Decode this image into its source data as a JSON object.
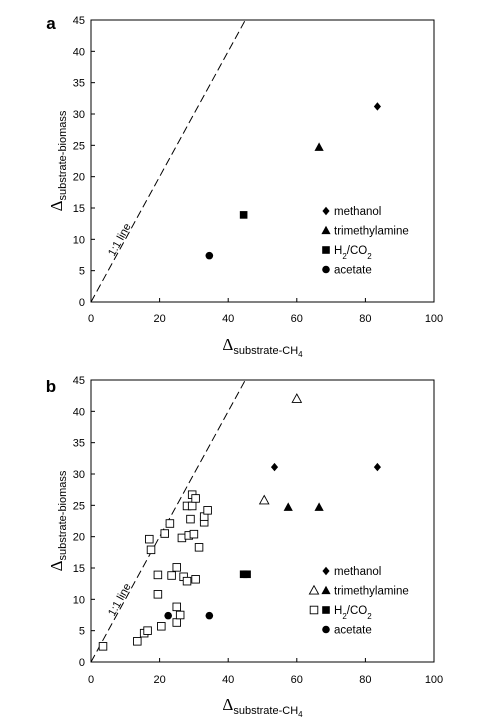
{
  "chart_data": [
    {
      "panel_label": "a",
      "type": "scatter",
      "xlabel": {
        "symbol": "Δ",
        "sub": "substrate-CH",
        "subsub": "4"
      },
      "ylabel": {
        "symbol": "Δ",
        "sub": "substrate-biomass"
      },
      "xlim": [
        0,
        100
      ],
      "ylim": [
        0,
        45
      ],
      "xticks": [
        0,
        20,
        40,
        60,
        80,
        100
      ],
      "yticks": [
        0,
        5,
        10,
        15,
        20,
        25,
        30,
        35,
        40,
        45
      ],
      "reference_line": {
        "label": "1:1 line",
        "slope": 1.0
      },
      "legend_position": "bottom-right",
      "series": [
        {
          "name": "methanol",
          "marker": "diamond",
          "points": [
            {
              "x": 83.5,
              "y": 31.2
            }
          ]
        },
        {
          "name": "trimethylamine",
          "marker": "triangle",
          "points": [
            {
              "x": 66.5,
              "y": 24.7
            }
          ]
        },
        {
          "name": "H2/CO2",
          "marker": "square",
          "points": [
            {
              "x": 44.5,
              "y": 13.9
            }
          ]
        },
        {
          "name": "acetate",
          "marker": "circle",
          "points": [
            {
              "x": 34.5,
              "y": 7.4
            }
          ]
        }
      ],
      "legend_entries": [
        {
          "text": "methanol",
          "markers": [
            "diamond"
          ]
        },
        {
          "text": "trimethylamine",
          "markers": [
            "triangle"
          ]
        },
        {
          "text": "H",
          "sub": "2",
          "after": "/CO",
          "sub2": "2",
          "markers": [
            "square"
          ]
        },
        {
          "text": "acetate",
          "markers": [
            "circle"
          ]
        }
      ]
    },
    {
      "panel_label": "b",
      "type": "scatter",
      "xlabel": {
        "symbol": "Δ",
        "sub": "substrate-CH",
        "subsub": "4"
      },
      "ylabel": {
        "symbol": "Δ",
        "sub": "substrate-biomass"
      },
      "xlim": [
        0,
        100
      ],
      "ylim": [
        0,
        45
      ],
      "xticks": [
        0,
        20,
        40,
        60,
        80,
        100
      ],
      "yticks": [
        0,
        5,
        10,
        15,
        20,
        25,
        30,
        35,
        40,
        45
      ],
      "reference_line": {
        "label": "1:1 line",
        "slope": 1.0
      },
      "legend_position": "bottom-right",
      "series": [
        {
          "name": "methanol",
          "marker": "diamond",
          "points": [
            {
              "x": 53.5,
              "y": 31.1
            },
            {
              "x": 83.5,
              "y": 31.1
            }
          ]
        },
        {
          "name": "trimethylamine (open)",
          "marker": "triangle-open",
          "points": [
            {
              "x": 50.5,
              "y": 25.8
            },
            {
              "x": 60.0,
              "y": 42.0
            }
          ]
        },
        {
          "name": "trimethylamine",
          "marker": "triangle",
          "points": [
            {
              "x": 57.5,
              "y": 24.7
            },
            {
              "x": 66.5,
              "y": 24.7
            }
          ]
        },
        {
          "name": "H2/CO2 (open)",
          "marker": "square-open",
          "points": [
            {
              "x": 3.5,
              "y": 2.5
            },
            {
              "x": 13.5,
              "y": 3.3
            },
            {
              "x": 15.5,
              "y": 4.6
            },
            {
              "x": 16.5,
              "y": 5.0
            },
            {
              "x": 20.5,
              "y": 5.7
            },
            {
              "x": 25.0,
              "y": 6.3
            },
            {
              "x": 26.0,
              "y": 7.5
            },
            {
              "x": 25.0,
              "y": 8.8
            },
            {
              "x": 19.5,
              "y": 10.8
            },
            {
              "x": 19.5,
              "y": 13.9
            },
            {
              "x": 23.5,
              "y": 13.8
            },
            {
              "x": 27.0,
              "y": 13.6
            },
            {
              "x": 28.0,
              "y": 12.9
            },
            {
              "x": 30.5,
              "y": 13.2
            },
            {
              "x": 25.0,
              "y": 15.1
            },
            {
              "x": 17.5,
              "y": 17.9
            },
            {
              "x": 17.0,
              "y": 19.6
            },
            {
              "x": 21.5,
              "y": 20.5
            },
            {
              "x": 23.0,
              "y": 22.1
            },
            {
              "x": 26.5,
              "y": 19.8
            },
            {
              "x": 28.5,
              "y": 20.2
            },
            {
              "x": 30.0,
              "y": 20.4
            },
            {
              "x": 31.5,
              "y": 18.3
            },
            {
              "x": 29.0,
              "y": 22.8
            },
            {
              "x": 28.0,
              "y": 24.9
            },
            {
              "x": 29.5,
              "y": 24.9
            },
            {
              "x": 29.5,
              "y": 26.7
            },
            {
              "x": 30.5,
              "y": 26.1
            },
            {
              "x": 33.0,
              "y": 22.3
            },
            {
              "x": 33.0,
              "y": 23.2
            },
            {
              "x": 34.0,
              "y": 24.2
            }
          ]
        },
        {
          "name": "H2/CO2",
          "marker": "square",
          "points": [
            {
              "x": 44.5,
              "y": 14.0
            },
            {
              "x": 45.5,
              "y": 14.0
            }
          ]
        },
        {
          "name": "acetate",
          "marker": "circle",
          "points": [
            {
              "x": 22.5,
              "y": 7.4
            },
            {
              "x": 34.5,
              "y": 7.4
            }
          ]
        }
      ],
      "legend_entries": [
        {
          "text": "methanol",
          "markers": [
            "diamond"
          ]
        },
        {
          "text": "trimethylamine",
          "markers": [
            "triangle-open",
            "triangle"
          ]
        },
        {
          "text": "H",
          "sub": "2",
          "after": "/CO",
          "sub2": "2",
          "markers": [
            "square-open",
            "square"
          ]
        },
        {
          "text": "acetate",
          "markers": [
            "circle"
          ]
        }
      ]
    }
  ]
}
